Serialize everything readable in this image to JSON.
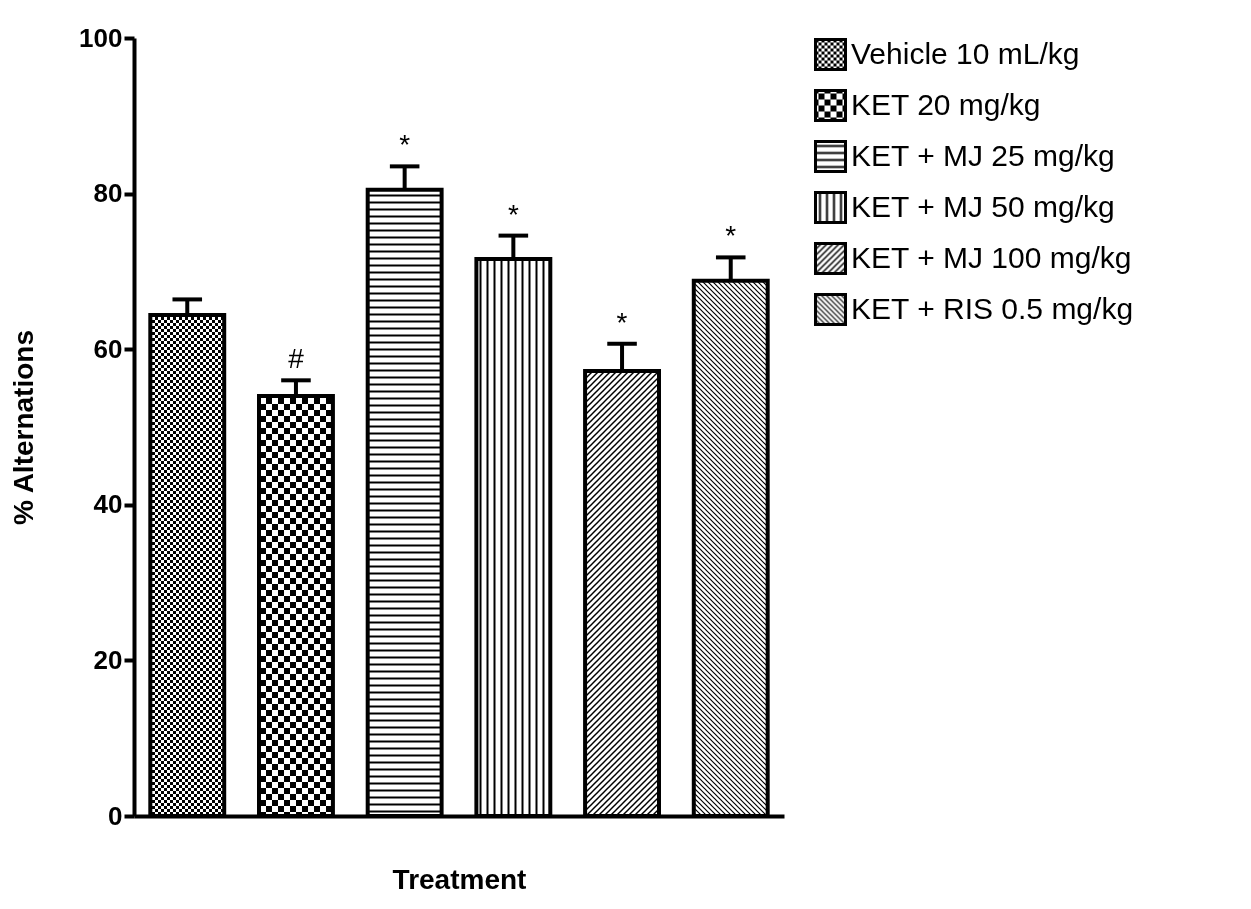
{
  "chart_data": {
    "type": "bar",
    "xlabel": "Treatment",
    "ylabel": "% Alternations",
    "categories": [
      null,
      null,
      null,
      null,
      null,
      null
    ],
    "ylim": [
      0,
      100
    ],
    "yticks": [
      0,
      20,
      40,
      60,
      80,
      100
    ],
    "grid": false,
    "legend": "top right",
    "tick_labels": "y",
    "series": [
      {
        "name": "Vehicle 10 mL/kg",
        "color": "#000000",
        "values": [
          64.4,
          null,
          null,
          null,
          null,
          null
        ],
        "errors": [
          2,
          null,
          null,
          null,
          null,
          null
        ]
      },
      {
        "name": "KET 20 mg/kg",
        "color": "#000000",
        "values": [
          null,
          54.0,
          null,
          null,
          null,
          null
        ],
        "errors": [
          null,
          2,
          null,
          null,
          null,
          null
        ],
        "value_labels": [
          null,
          "#",
          null,
          null,
          null,
          null
        ]
      },
      {
        "name": "KET + MJ 25 mg/kg",
        "color": "#000000",
        "values": [
          null,
          null,
          80.5,
          null,
          null,
          null
        ],
        "errors": [
          null,
          null,
          3,
          null,
          null,
          null
        ],
        "value_labels": [
          null,
          null,
          "*",
          null,
          null,
          null
        ]
      },
      {
        "name": "KET + MJ 50 mg/kg",
        "color": "#000000",
        "values": [
          null,
          null,
          null,
          71.6,
          null,
          null
        ],
        "errors": [
          null,
          null,
          null,
          3,
          null,
          null
        ],
        "value_labels": [
          null,
          null,
          null,
          "*",
          null,
          null
        ]
      },
      {
        "name": "KET + MJ 100 mg/kg",
        "color": "#000000",
        "values": [
          null,
          null,
          null,
          null,
          57.2,
          null
        ],
        "errors": [
          null,
          null,
          null,
          null,
          3.5,
          null
        ],
        "value_labels": [
          null,
          null,
          null,
          null,
          "*",
          null
        ]
      },
      {
        "name": "KET + RIS 0.5 mg/kg",
        "color": "#000000",
        "values": [
          null,
          null,
          null,
          null,
          null,
          68.8
        ],
        "errors": [
          null,
          null,
          null,
          null,
          null,
          3
        ],
        "value_labels": [
          null,
          null,
          null,
          null,
          null,
          "*"
        ]
      }
    ]
  }
}
